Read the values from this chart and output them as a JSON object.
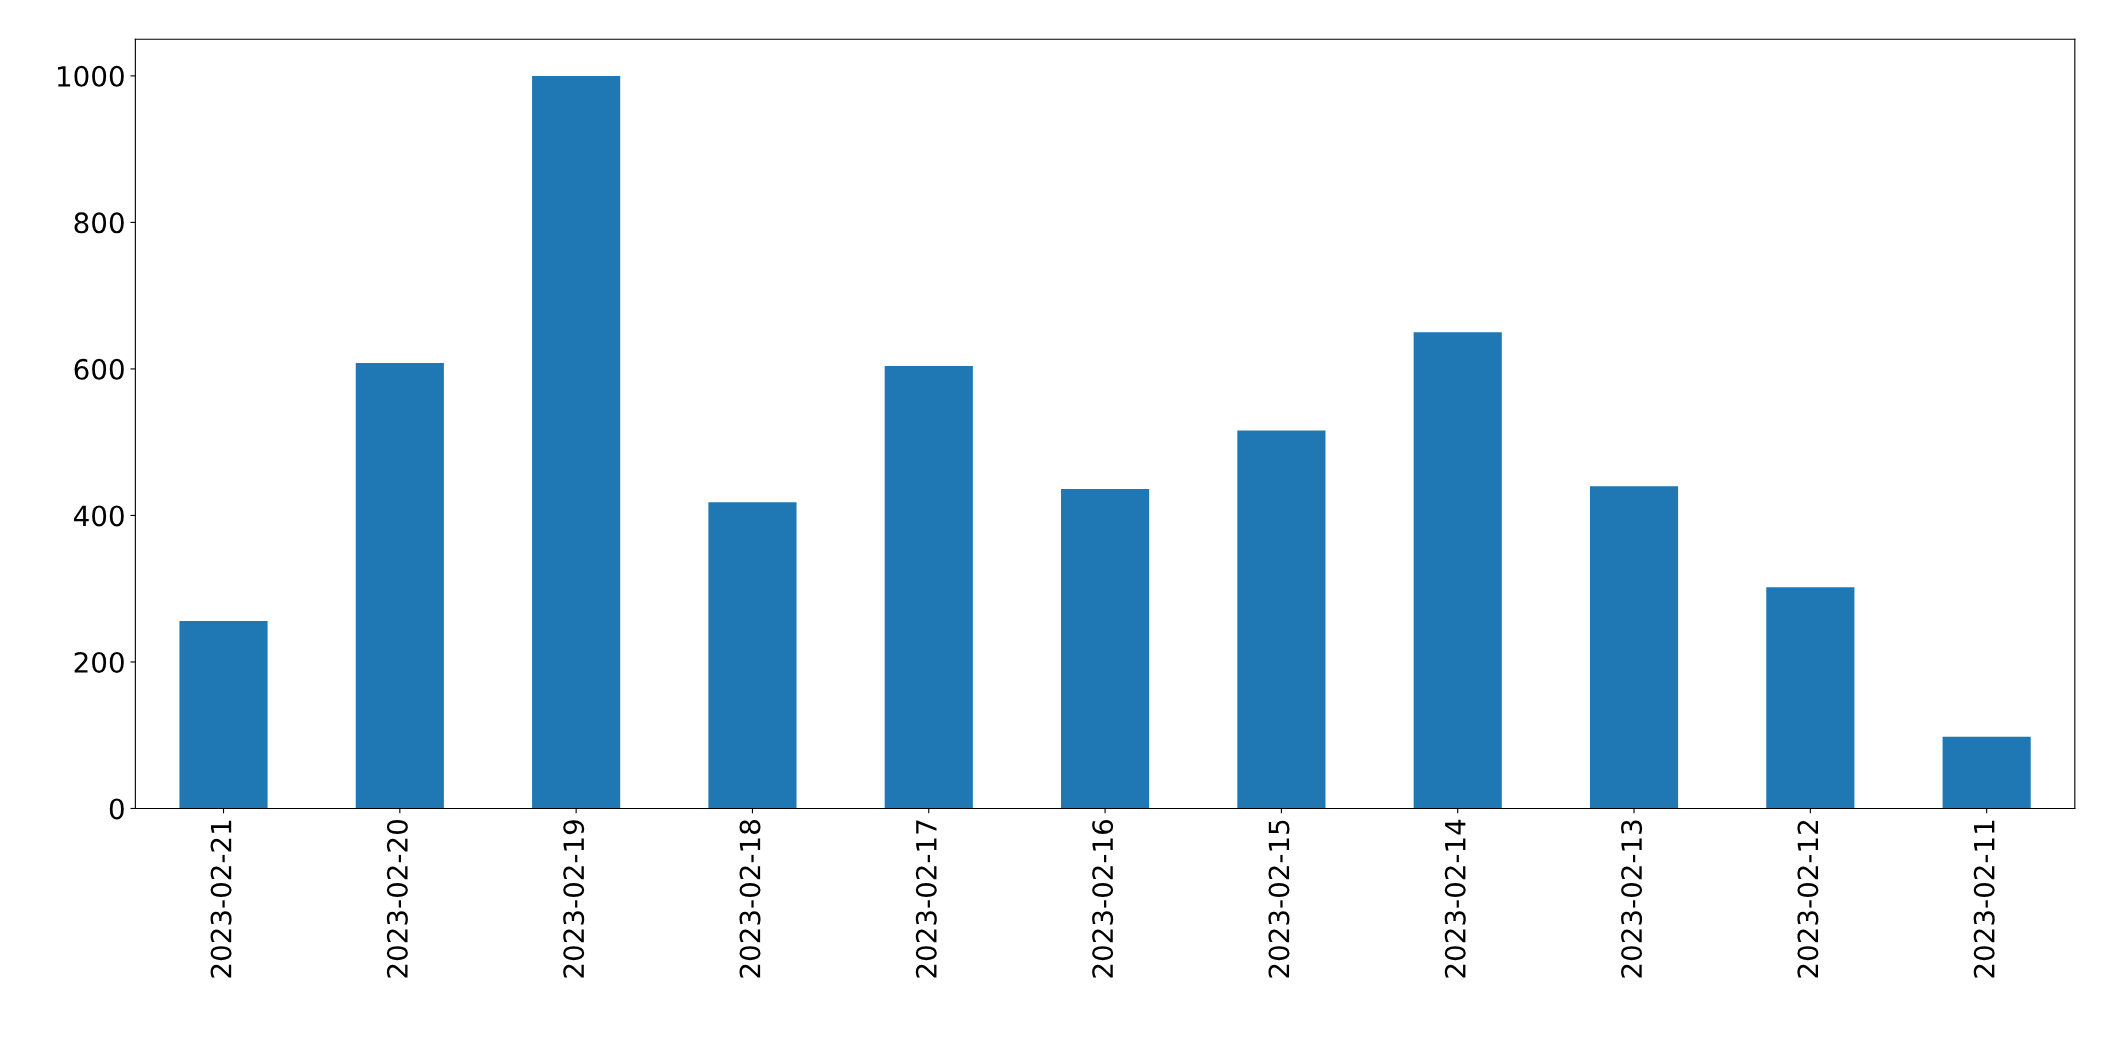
{
  "chart_data": {
    "type": "bar",
    "categories": [
      "2023-02-21",
      "2023-02-20",
      "2023-02-19",
      "2023-02-18",
      "2023-02-17",
      "2023-02-16",
      "2023-02-15",
      "2023-02-14",
      "2023-02-13",
      "2023-02-12",
      "2023-02-11"
    ],
    "values": [
      256,
      608,
      1000,
      418,
      604,
      436,
      516,
      650,
      440,
      302,
      98
    ],
    "color": "#1f77b4",
    "ylim": [
      0,
      1050
    ],
    "yticks": [
      0,
      200,
      400,
      600,
      800,
      1000
    ],
    "grid": false,
    "legend": false
  }
}
